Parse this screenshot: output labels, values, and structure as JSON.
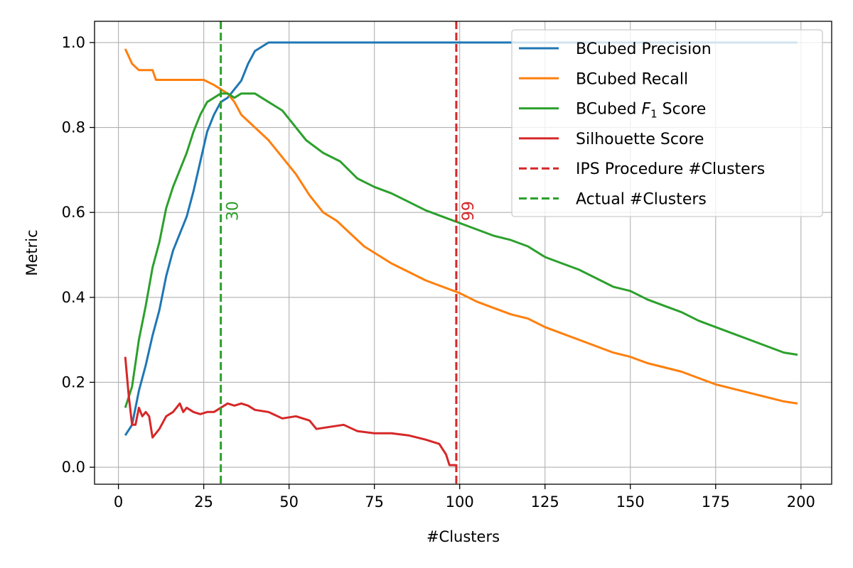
{
  "chart_data": {
    "type": "line",
    "xlabel": "#Clusters",
    "ylabel": "Metric",
    "xlim": [
      -7,
      209
    ],
    "ylim": [
      -0.04,
      1.05
    ],
    "xticks": [
      0,
      25,
      50,
      75,
      100,
      125,
      150,
      175,
      200
    ],
    "yticks": [
      0.0,
      0.2,
      0.4,
      0.6,
      0.8,
      1.0
    ],
    "xtick_labels": [
      "0",
      "25",
      "50",
      "75",
      "100",
      "125",
      "150",
      "175",
      "200"
    ],
    "ytick_labels": [
      "0.0",
      "0.2",
      "0.4",
      "0.6",
      "0.8",
      "1.0"
    ],
    "grid": true,
    "legend_position": "top-right",
    "series": [
      {
        "name": "BCubed Precision",
        "color": "#1f77b4",
        "style": "solid",
        "points": [
          [
            2,
            0.075
          ],
          [
            4,
            0.1
          ],
          [
            6,
            0.18
          ],
          [
            8,
            0.24
          ],
          [
            10,
            0.31
          ],
          [
            12,
            0.37
          ],
          [
            14,
            0.45
          ],
          [
            16,
            0.51
          ],
          [
            18,
            0.55
          ],
          [
            20,
            0.59
          ],
          [
            22,
            0.65
          ],
          [
            24,
            0.72
          ],
          [
            26,
            0.79
          ],
          [
            28,
            0.83
          ],
          [
            30,
            0.86
          ],
          [
            32,
            0.87
          ],
          [
            34,
            0.89
          ],
          [
            36,
            0.91
          ],
          [
            38,
            0.95
          ],
          [
            40,
            0.98
          ],
          [
            42,
            0.99
          ],
          [
            44,
            1.0
          ],
          [
            50,
            1.0
          ],
          [
            100,
            1.0
          ],
          [
            150,
            1.0
          ],
          [
            199,
            1.0
          ]
        ]
      },
      {
        "name": "BCubed Recall",
        "color": "#ff7f0e",
        "style": "solid",
        "points": [
          [
            2,
            0.985
          ],
          [
            4,
            0.95
          ],
          [
            6,
            0.935
          ],
          [
            8,
            0.935
          ],
          [
            10,
            0.935
          ],
          [
            11,
            0.912
          ],
          [
            15,
            0.912
          ],
          [
            20,
            0.912
          ],
          [
            25,
            0.912
          ],
          [
            28,
            0.9
          ],
          [
            30,
            0.89
          ],
          [
            32,
            0.88
          ],
          [
            34,
            0.86
          ],
          [
            36,
            0.83
          ],
          [
            40,
            0.8
          ],
          [
            44,
            0.77
          ],
          [
            48,
            0.73
          ],
          [
            52,
            0.69
          ],
          [
            56,
            0.64
          ],
          [
            60,
            0.6
          ],
          [
            64,
            0.58
          ],
          [
            68,
            0.55
          ],
          [
            72,
            0.52
          ],
          [
            76,
            0.5
          ],
          [
            80,
            0.48
          ],
          [
            85,
            0.46
          ],
          [
            90,
            0.44
          ],
          [
            95,
            0.425
          ],
          [
            100,
            0.41
          ],
          [
            105,
            0.39
          ],
          [
            110,
            0.375
          ],
          [
            115,
            0.36
          ],
          [
            120,
            0.35
          ],
          [
            125,
            0.33
          ],
          [
            130,
            0.315
          ],
          [
            135,
            0.3
          ],
          [
            140,
            0.285
          ],
          [
            145,
            0.27
          ],
          [
            150,
            0.26
          ],
          [
            155,
            0.245
          ],
          [
            160,
            0.235
          ],
          [
            165,
            0.225
          ],
          [
            170,
            0.21
          ],
          [
            175,
            0.195
          ],
          [
            180,
            0.185
          ],
          [
            185,
            0.175
          ],
          [
            190,
            0.165
          ],
          [
            195,
            0.155
          ],
          [
            199,
            0.15
          ]
        ]
      },
      {
        "name": "BCubed F1 Score",
        "color": "#2ca02c",
        "style": "solid",
        "points": [
          [
            2,
            0.14
          ],
          [
            4,
            0.19
          ],
          [
            6,
            0.3
          ],
          [
            8,
            0.38
          ],
          [
            10,
            0.47
          ],
          [
            12,
            0.53
          ],
          [
            14,
            0.61
          ],
          [
            16,
            0.66
          ],
          [
            18,
            0.7
          ],
          [
            20,
            0.74
          ],
          [
            22,
            0.79
          ],
          [
            24,
            0.83
          ],
          [
            26,
            0.86
          ],
          [
            28,
            0.87
          ],
          [
            30,
            0.88
          ],
          [
            32,
            0.88
          ],
          [
            34,
            0.87
          ],
          [
            36,
            0.88
          ],
          [
            38,
            0.88
          ],
          [
            40,
            0.88
          ],
          [
            42,
            0.87
          ],
          [
            44,
            0.86
          ],
          [
            46,
            0.85
          ],
          [
            48,
            0.84
          ],
          [
            50,
            0.82
          ],
          [
            55,
            0.77
          ],
          [
            60,
            0.74
          ],
          [
            65,
            0.72
          ],
          [
            70,
            0.68
          ],
          [
            75,
            0.66
          ],
          [
            80,
            0.645
          ],
          [
            85,
            0.625
          ],
          [
            90,
            0.605
          ],
          [
            95,
            0.59
          ],
          [
            100,
            0.575
          ],
          [
            105,
            0.56
          ],
          [
            110,
            0.545
          ],
          [
            115,
            0.535
          ],
          [
            120,
            0.52
          ],
          [
            125,
            0.495
          ],
          [
            130,
            0.48
          ],
          [
            135,
            0.465
          ],
          [
            140,
            0.445
          ],
          [
            145,
            0.425
          ],
          [
            150,
            0.415
          ],
          [
            155,
            0.395
          ],
          [
            160,
            0.38
          ],
          [
            165,
            0.365
          ],
          [
            170,
            0.345
          ],
          [
            175,
            0.33
          ],
          [
            180,
            0.315
          ],
          [
            185,
            0.3
          ],
          [
            190,
            0.285
          ],
          [
            195,
            0.27
          ],
          [
            199,
            0.265
          ]
        ]
      },
      {
        "name": "Silhouette Score",
        "color": "#d62728",
        "style": "solid",
        "points": [
          [
            2,
            0.26
          ],
          [
            3,
            0.17
          ],
          [
            4,
            0.1
          ],
          [
            5,
            0.1
          ],
          [
            6,
            0.14
          ],
          [
            7,
            0.12
          ],
          [
            8,
            0.13
          ],
          [
            9,
            0.12
          ],
          [
            10,
            0.07
          ],
          [
            12,
            0.09
          ],
          [
            14,
            0.12
          ],
          [
            16,
            0.13
          ],
          [
            18,
            0.15
          ],
          [
            19,
            0.13
          ],
          [
            20,
            0.14
          ],
          [
            22,
            0.13
          ],
          [
            24,
            0.125
          ],
          [
            26,
            0.13
          ],
          [
            28,
            0.13
          ],
          [
            30,
            0.14
          ],
          [
            32,
            0.15
          ],
          [
            34,
            0.145
          ],
          [
            36,
            0.15
          ],
          [
            38,
            0.145
          ],
          [
            40,
            0.135
          ],
          [
            44,
            0.13
          ],
          [
            48,
            0.115
          ],
          [
            52,
            0.12
          ],
          [
            56,
            0.11
          ],
          [
            58,
            0.09
          ],
          [
            62,
            0.095
          ],
          [
            66,
            0.1
          ],
          [
            70,
            0.085
          ],
          [
            75,
            0.08
          ],
          [
            80,
            0.08
          ],
          [
            85,
            0.075
          ],
          [
            90,
            0.065
          ],
          [
            94,
            0.055
          ],
          [
            96,
            0.03
          ],
          [
            97,
            0.005
          ],
          [
            99,
            0.005
          ]
        ]
      },
      {
        "name": "IPS Procedure #Clusters",
        "color": "#d62728",
        "style": "dashed",
        "vline": 99
      },
      {
        "name": "Actual #Clusters",
        "color": "#2ca02c",
        "style": "dashed",
        "vline": 30
      }
    ],
    "annotations": [
      {
        "text": "30",
        "x": 30,
        "y": 0.58,
        "color": "#2ca02c",
        "rotation": 90
      },
      {
        "text": "99",
        "x": 99,
        "y": 0.58,
        "color": "#d62728",
        "rotation": 90
      }
    ]
  }
}
